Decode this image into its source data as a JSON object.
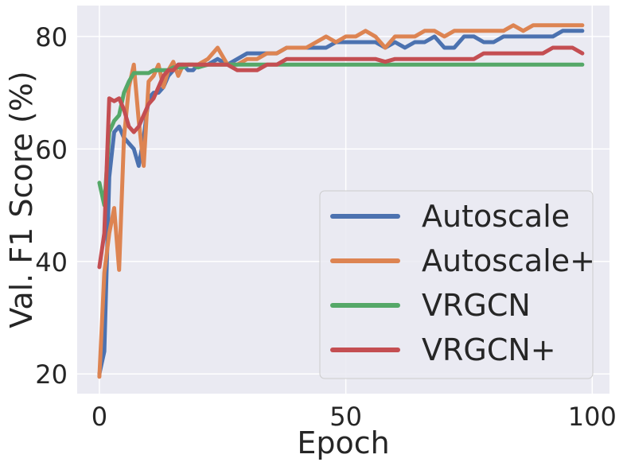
{
  "chart_data": {
    "type": "line",
    "title": "",
    "xlabel": "Epoch",
    "ylabel": "Val. F1 Score (%)",
    "xlim": [
      -4.5,
      103.5
    ],
    "ylim": [
      16.5,
      85.5
    ],
    "xticks": [
      0,
      50,
      100
    ],
    "yticks": [
      20,
      40,
      60,
      80
    ],
    "xtick_labels": [
      "0",
      "50",
      "100"
    ],
    "ytick_labels": [
      "20",
      "40",
      "60",
      "80"
    ],
    "grid": true,
    "background": "#EAEAF2",
    "legend_position": "lower-right",
    "series": [
      {
        "name": "Autoscale",
        "color": "#4C72B0",
        "x": [
          0,
          1,
          2,
          3,
          4,
          5,
          6,
          7,
          8,
          9,
          10,
          11,
          12,
          13,
          14,
          15,
          16,
          17,
          18,
          19,
          20,
          22,
          24,
          26,
          28,
          30,
          32,
          34,
          36,
          38,
          40,
          42,
          44,
          46,
          48,
          50,
          52,
          54,
          56,
          58,
          60,
          62,
          64,
          66,
          68,
          70,
          72,
          74,
          76,
          78,
          80,
          82,
          84,
          86,
          88,
          90,
          92,
          94,
          96,
          98
        ],
        "y": [
          20,
          24,
          55,
          63,
          64,
          62,
          61,
          60,
          57,
          62,
          69,
          70,
          70,
          71,
          73,
          74,
          75,
          75,
          74,
          74,
          75,
          75,
          76,
          75,
          76,
          77,
          77,
          77,
          77,
          78,
          78,
          78,
          78,
          78,
          79,
          79,
          79,
          79,
          79,
          78,
          79,
          78,
          79,
          79,
          80,
          78,
          78,
          80,
          80,
          79,
          79,
          80,
          80,
          80,
          80,
          80,
          80,
          81,
          81,
          81
        ]
      },
      {
        "name": "Autoscale+",
        "color": "#DD8452",
        "x": [
          0,
          1,
          2,
          3,
          4,
          5,
          6,
          7,
          8,
          9,
          10,
          11,
          12,
          13,
          14,
          15,
          16,
          17,
          18,
          19,
          20,
          22,
          24,
          26,
          28,
          30,
          32,
          34,
          36,
          38,
          40,
          42,
          44,
          46,
          48,
          50,
          52,
          54,
          56,
          58,
          60,
          62,
          64,
          66,
          68,
          70,
          72,
          74,
          76,
          78,
          80,
          82,
          84,
          86,
          88,
          90,
          92,
          94,
          96,
          98
        ],
        "y": [
          19.5,
          38,
          45,
          49.5,
          38.5,
          62,
          71,
          75,
          65,
          57,
          72,
          73,
          75,
          71,
          74,
          75.5,
          73,
          75,
          75,
          75,
          75,
          76,
          78,
          75,
          75,
          76,
          76,
          77,
          77,
          78,
          78,
          78,
          79,
          80,
          79,
          80,
          80,
          81,
          80,
          78,
          80,
          80,
          80,
          81,
          81,
          80,
          81,
          81,
          81,
          81,
          81,
          81,
          82,
          81,
          82,
          82,
          82,
          82,
          82,
          82
        ]
      },
      {
        "name": "VRGCN",
        "color": "#55A868",
        "x": [
          0,
          1,
          2,
          3,
          4,
          5,
          6,
          7,
          8,
          9,
          10,
          11,
          12,
          13,
          14,
          15,
          16,
          17,
          18,
          19,
          20,
          22,
          24,
          26,
          28,
          30,
          32,
          34,
          36,
          38,
          40,
          42,
          44,
          46,
          48,
          50,
          52,
          54,
          56,
          58,
          60,
          62,
          64,
          66,
          68,
          70,
          72,
          74,
          76,
          78,
          80,
          82,
          84,
          86,
          88,
          90,
          92,
          94,
          96,
          98
        ],
        "y": [
          54,
          50,
          63,
          65,
          66,
          70,
          72,
          73.5,
          73.5,
          73.5,
          73.5,
          74,
          74,
          74,
          74,
          74.5,
          74.5,
          74.5,
          75,
          75,
          74.5,
          75,
          75,
          75,
          75,
          75,
          75,
          75,
          75,
          75,
          75,
          75,
          75,
          75,
          75,
          75,
          75,
          75,
          75,
          75,
          75,
          75,
          75,
          75,
          75,
          75,
          75,
          75,
          75,
          75,
          75,
          75,
          75,
          75,
          75,
          75,
          75,
          75,
          75,
          75
        ]
      },
      {
        "name": "VRGCN+",
        "color": "#C44E52",
        "x": [
          0,
          1,
          2,
          3,
          4,
          5,
          6,
          7,
          8,
          9,
          10,
          11,
          12,
          13,
          14,
          15,
          16,
          17,
          18,
          19,
          20,
          22,
          24,
          26,
          28,
          30,
          32,
          34,
          36,
          38,
          40,
          42,
          44,
          46,
          48,
          50,
          52,
          54,
          56,
          58,
          60,
          62,
          64,
          66,
          68,
          70,
          72,
          74,
          76,
          78,
          80,
          82,
          84,
          86,
          88,
          90,
          92,
          94,
          96,
          98
        ],
        "y": [
          39,
          45,
          69,
          68.5,
          69,
          67,
          64,
          63,
          64,
          66,
          68,
          69,
          71,
          73,
          74,
          74,
          75,
          75,
          75,
          75,
          75,
          75,
          75,
          75,
          74,
          74,
          74,
          75,
          75,
          76,
          76,
          76,
          76,
          76,
          76,
          76,
          76,
          76,
          76,
          75.5,
          76,
          76,
          76,
          76,
          76,
          76,
          76,
          76,
          76,
          77,
          77,
          77,
          77,
          77,
          77,
          77,
          78,
          78,
          78,
          77
        ]
      }
    ]
  }
}
